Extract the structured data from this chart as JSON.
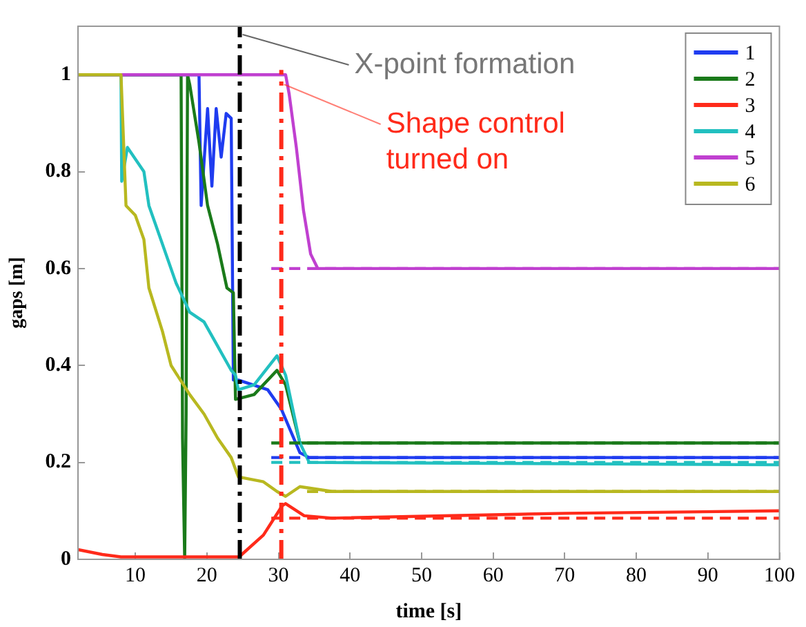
{
  "chart_data": {
    "type": "line",
    "xlabel": "time [s]",
    "ylabel": "gaps [m]",
    "xlim": [
      2,
      100
    ],
    "ylim": [
      0,
      1.1
    ],
    "xticks": [
      10,
      20,
      30,
      40,
      50,
      60,
      70,
      80,
      90,
      100
    ],
    "yticks": [
      0,
      0.2,
      0.4,
      0.6,
      0.8,
      1
    ],
    "grid": false,
    "legend": "top right",
    "marker": "none",
    "line_style": "solid",
    "series": [
      {
        "name": "1",
        "color": "#1f3cf0",
        "x": [
          2,
          18.9,
          19.2,
          20.1,
          20.7,
          21.3,
          22,
          22.7,
          23.4,
          23.7,
          24.4,
          28.5,
          30.4,
          33,
          34.3,
          100
        ],
        "values": [
          1,
          1,
          0.73,
          0.93,
          0.77,
          0.93,
          0.83,
          0.92,
          0.91,
          0.37,
          0.37,
          0.35,
          0.31,
          0.22,
          0.21,
          0.21
        ]
      },
      {
        "name": "2",
        "color": "#1a7a1a",
        "x": [
          2,
          16.4,
          16.6,
          16.9,
          17.1,
          17.3,
          17.6,
          18.9,
          20.1,
          21.5,
          22.8,
          23.7,
          24,
          26.6,
          29.8,
          31,
          33,
          100
        ],
        "values": [
          1,
          1,
          0.25,
          0,
          0.3,
          1,
          0.98,
          0.86,
          0.73,
          0.65,
          0.56,
          0.55,
          0.33,
          0.34,
          0.39,
          0.36,
          0.24,
          0.24
        ]
      },
      {
        "name": "3",
        "color": "#ff2a1a",
        "x": [
          2,
          5.4,
          8,
          24.5,
          27.9,
          30.5,
          31,
          33.6,
          37.5,
          70,
          100
        ],
        "values": [
          0.02,
          0.01,
          0.005,
          0.005,
          0.05,
          0.11,
          0.115,
          0.09,
          0.085,
          0.095,
          0.1
        ]
      },
      {
        "name": "4",
        "color": "#22c0c0",
        "x": [
          2,
          8,
          8.1,
          8.9,
          11.2,
          11.9,
          13.8,
          15.7,
          17.6,
          19.6,
          21.5,
          23.4,
          24,
          24.4,
          26.6,
          29.8,
          31,
          33,
          34.3,
          100
        ],
        "values": [
          1,
          1,
          0.78,
          0.85,
          0.8,
          0.73,
          0.65,
          0.57,
          0.51,
          0.49,
          0.44,
          0.39,
          0.38,
          0.35,
          0.36,
          0.42,
          0.38,
          0.24,
          0.2,
          0.195
        ]
      },
      {
        "name": "5",
        "color": "#c040d0",
        "x": [
          2,
          31,
          31.5,
          32.5,
          33.5,
          34.5,
          35.5,
          100
        ],
        "values": [
          1,
          1,
          0.96,
          0.85,
          0.72,
          0.63,
          0.6,
          0.6
        ]
      },
      {
        "name": "6",
        "color": "#b8b820",
        "x": [
          2,
          8,
          8.7,
          10,
          11.2,
          11.9,
          13.8,
          15,
          17.6,
          19.6,
          21.5,
          23.4,
          24.4,
          27.9,
          29.8,
          31,
          33,
          37.5,
          100
        ],
        "values": [
          1,
          1,
          0.73,
          0.71,
          0.66,
          0.56,
          0.47,
          0.4,
          0.34,
          0.3,
          0.25,
          0.21,
          0.17,
          0.16,
          0.14,
          0.13,
          0.15,
          0.14,
          0.14
        ]
      },
      {
        "color": "#c040d0",
        "line_style": "dashed",
        "x": [
          29,
          100
        ],
        "values": [
          0.6,
          0.6
        ]
      },
      {
        "color": "#1a7a1a",
        "line_style": "dashed",
        "x": [
          29,
          100
        ],
        "values": [
          0.24,
          0.24
        ]
      },
      {
        "color": "#1f3cf0",
        "line_style": "dashed",
        "x": [
          29,
          100
        ],
        "values": [
          0.21,
          0.21
        ]
      },
      {
        "color": "#22c0c0",
        "line_style": "dashed",
        "x": [
          29,
          100
        ],
        "values": [
          0.2,
          0.2
        ]
      },
      {
        "color": "#b8b820",
        "line_style": "dashed",
        "x": [
          34,
          100
        ],
        "values": [
          0.14,
          0.14
        ]
      },
      {
        "color": "#ff2a1a",
        "line_style": "dashed",
        "x": [
          29,
          100
        ],
        "values": [
          0.085,
          0.085
        ]
      }
    ],
    "ref_lines": [
      {
        "axis": "x",
        "value": 24.6,
        "label": "X-point formation",
        "color": "#000000",
        "line_style": "dashed"
      },
      {
        "axis": "x",
        "value": 30.4,
        "label": "Shape control turned on",
        "color": "#ff2a1a",
        "line_style": "dashed"
      }
    ]
  }
}
